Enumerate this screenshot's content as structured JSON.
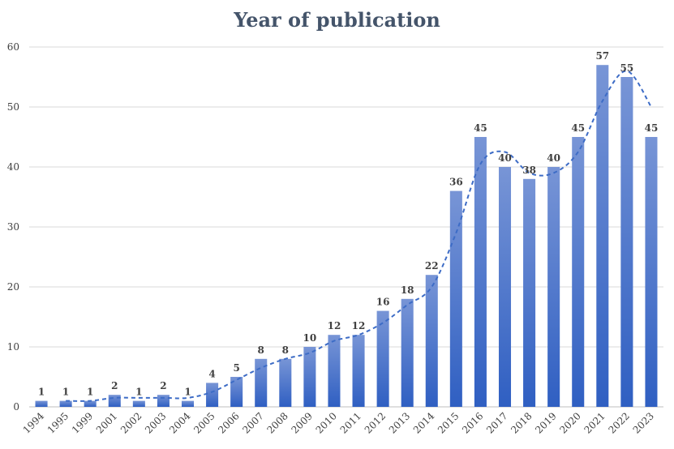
{
  "chart_data": {
    "type": "bar",
    "title": "Year of publication",
    "xlabel": "",
    "ylabel": "",
    "ylim": [
      0,
      60
    ],
    "yticks": [
      0,
      10,
      20,
      30,
      40,
      50,
      60
    ],
    "grid": true,
    "categories": [
      "1994",
      "1995",
      "1999",
      "2001",
      "2002",
      "2003",
      "2004",
      "2005",
      "2006",
      "2007",
      "2008",
      "2009",
      "2010",
      "2011",
      "2012",
      "2013",
      "2014",
      "2015",
      "2016",
      "2017",
      "2018",
      "2019",
      "2020",
      "2021",
      "2022",
      "2023"
    ],
    "values": [
      1,
      1,
      1,
      2,
      1,
      2,
      1,
      4,
      5,
      8,
      8,
      10,
      12,
      12,
      16,
      18,
      22,
      36,
      45,
      40,
      38,
      40,
      45,
      57,
      55,
      45
    ],
    "trendline": {
      "type": "moving-average",
      "style": "dashed",
      "values": [
        null,
        1,
        1,
        1.5,
        1.5,
        1.5,
        1.5,
        2.5,
        4.5,
        6.5,
        8,
        9,
        11,
        12,
        14,
        17,
        20,
        29,
        40.5,
        42.5,
        39,
        39,
        42.5,
        51,
        56,
        50
      ]
    },
    "colors": {
      "bar_top": "#7895d6",
      "bar_bottom": "#2f5fc2",
      "trend": "#3d6cc6",
      "grid": "#d9d9d9",
      "text": "#404040",
      "title": "#44546a"
    }
  }
}
